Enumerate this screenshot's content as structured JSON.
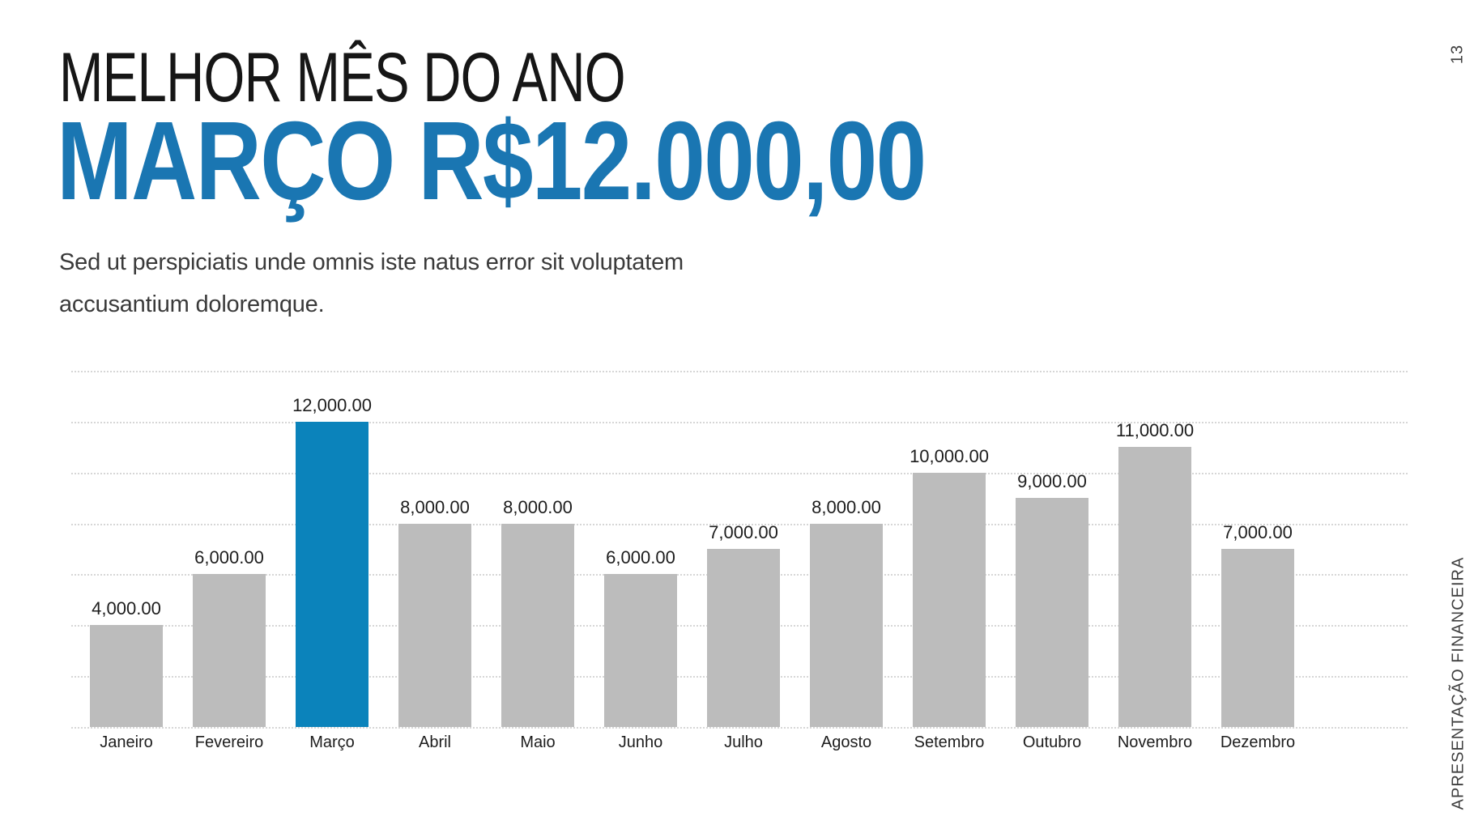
{
  "header": {
    "title": "MELHOR MÊS DO ANO",
    "highlight": "MARÇO R$12.000,00"
  },
  "body_text": {
    "line1": "Sed ut perspiciatis unde omnis iste natus error sit voluptatem",
    "line2": "accusantium doloremque."
  },
  "footer": {
    "side_label": "APRESENTAÇÃO FINANCEIRA",
    "page_number": "13"
  },
  "colors": {
    "accent_blue_text": "#1a76b2",
    "bar_gray": "#bcbcbc",
    "bar_highlight_blue": "#0b83bb",
    "gridline": "#d6d6d6",
    "label_dark": "#1d1d1d",
    "side_text_gray": "#3f3f3f"
  },
  "chart_data": {
    "type": "bar",
    "title": "",
    "xlabel": "",
    "ylabel": "",
    "categories": [
      "Janeiro",
      "Fevereiro",
      "Março",
      "Abril",
      "Maio",
      "Junho",
      "Julho",
      "Agosto",
      "Setembro",
      "Outubro",
      "Novembro",
      "Dezembro"
    ],
    "values": [
      4000,
      6000,
      12000,
      8000,
      8000,
      6000,
      7000,
      8000,
      10000,
      9000,
      11000,
      7000
    ],
    "value_labels": [
      "4,000.00",
      "6,000.00",
      "12,000.00",
      "8,000.00",
      "8,000.00",
      "6,000.00",
      "7,000.00",
      "8,000.00",
      "10,000.00",
      "9,000.00",
      "11,000.00",
      "7,000.00"
    ],
    "highlight_index": 2,
    "highlight_category": "Março",
    "ylim": [
      0,
      14000
    ],
    "gridline_step": 2000,
    "grid": true,
    "legend": false
  }
}
